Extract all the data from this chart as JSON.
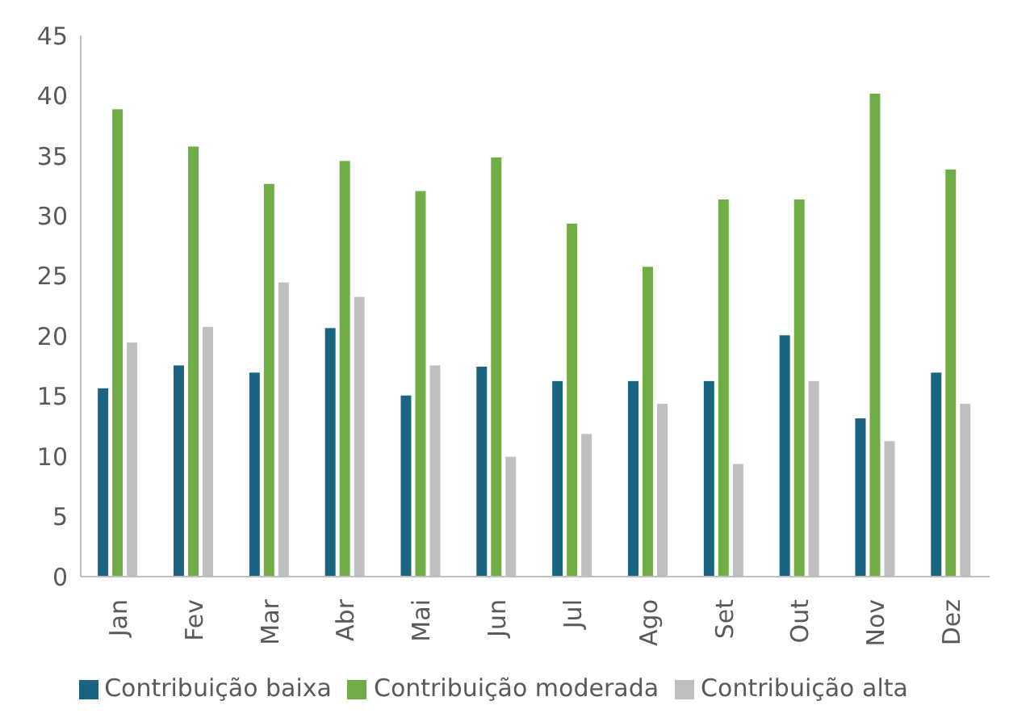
{
  "chart_data": {
    "type": "bar",
    "categories": [
      "Jan",
      "Fev",
      "Mar",
      "Abr",
      "Mai",
      "Jun",
      "Jul",
      "Ago",
      "Set",
      "Out",
      "Nov",
      "Dez"
    ],
    "series": [
      {
        "name": "Contribuição baixa",
        "color": "#1a6381",
        "values": [
          15.7,
          17.6,
          17.0,
          20.7,
          15.1,
          17.5,
          16.3,
          16.3,
          16.3,
          20.1,
          13.2,
          17.0
        ]
      },
      {
        "name": "Contribuição moderada",
        "color": "#71ad47",
        "values": [
          38.9,
          35.8,
          32.7,
          34.6,
          32.1,
          34.9,
          29.4,
          25.8,
          31.4,
          31.4,
          40.2,
          33.9
        ]
      },
      {
        "name": "Contribuição alta",
        "color": "#bfbfbf",
        "values": [
          19.5,
          20.8,
          24.5,
          23.3,
          17.6,
          10.0,
          11.9,
          14.4,
          9.4,
          16.3,
          11.3,
          14.4
        ]
      }
    ],
    "ylim": [
      0,
      45
    ],
    "yticks": [
      0,
      5,
      10,
      15,
      20,
      25,
      30,
      35,
      40,
      45
    ],
    "grid": false,
    "legend": "bottom"
  }
}
